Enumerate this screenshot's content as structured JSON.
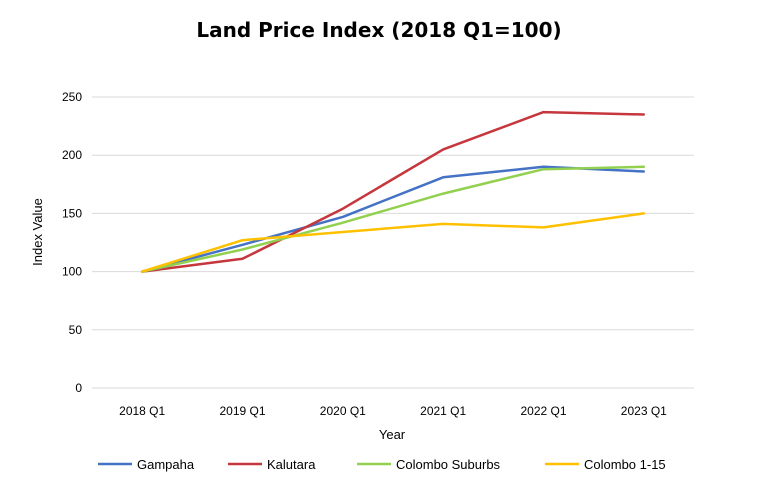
{
  "chart_data": {
    "type": "line",
    "title": "Land Price Index (2018 Q1=100)",
    "xlabel": "Year",
    "ylabel": "Index Value",
    "categories": [
      "2018 Q1",
      "2019 Q1",
      "2020 Q1",
      "2021 Q1",
      "2022 Q1",
      "2023 Q1"
    ],
    "ylim": [
      0,
      250
    ],
    "yticks": [
      0,
      50,
      100,
      150,
      200,
      250
    ],
    "grid": true,
    "legend_position": "bottom",
    "series": [
      {
        "name": "Gampaha",
        "color": "#4472C4",
        "values": [
          100,
          123,
          147,
          181,
          190,
          186
        ]
      },
      {
        "name": "Kalutara",
        "color": "#C5373D",
        "values": [
          100,
          111,
          154,
          205,
          237,
          235
        ]
      },
      {
        "name": "Colombo Suburbs",
        "color": "#92D050",
        "values": [
          100,
          119,
          142,
          167,
          188,
          190
        ]
      },
      {
        "name": "Colombo 1-15",
        "color": "#FFC000",
        "values": [
          100,
          127,
          134,
          141,
          138,
          150
        ]
      }
    ]
  }
}
